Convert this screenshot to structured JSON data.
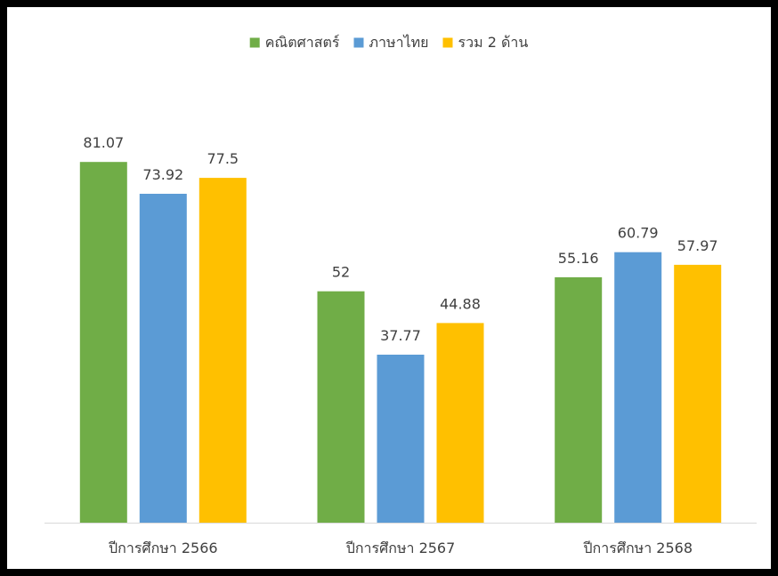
{
  "chart_data": {
    "type": "bar",
    "title": "",
    "xlabel": "",
    "ylabel": "",
    "ylim": [
      0,
      100
    ],
    "grid": false,
    "legend_position": "top-center",
    "categories": [
      "ปีการศึกษา 2566",
      "ปีการศึกษา 2567",
      "ปีการศึกษา 2568"
    ],
    "series": [
      {
        "name": "คณิตศาสตร์",
        "color": "#70AD47",
        "values": [
          81.07,
          52,
          55.16
        ],
        "labels": [
          "81.07",
          "52",
          "55.16"
        ]
      },
      {
        "name": "ภาษาไทย",
        "color": "#5B9BD5",
        "values": [
          73.92,
          37.77,
          60.79
        ],
        "labels": [
          "73.92",
          "37.77",
          "60.79"
        ]
      },
      {
        "name": "รวม 2 ด้าน",
        "color": "#FFC000",
        "values": [
          77.5,
          44.88,
          57.97
        ],
        "labels": [
          "77.5",
          "44.88",
          "57.97"
        ]
      }
    ]
  }
}
